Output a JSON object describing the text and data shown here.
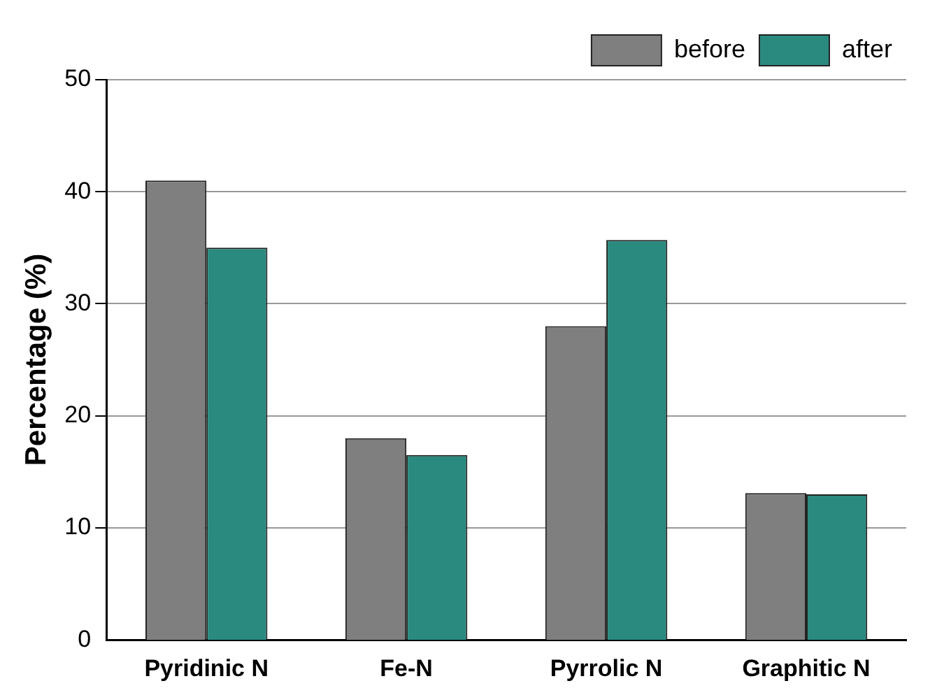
{
  "chart_data": {
    "type": "bar",
    "ylabel": "Percentage (%)",
    "categories": [
      "Pyridinic N",
      "Fe-N",
      "Pyrrolic N",
      "Graphitic N"
    ],
    "series": [
      {
        "name": "before",
        "color": "#7f7f7f",
        "values": [
          41,
          18,
          28,
          13.1
        ]
      },
      {
        "name": "after",
        "color": "#2a8a80",
        "values": [
          35,
          16.5,
          35.7,
          13
        ]
      }
    ],
    "ylim": [
      0,
      50
    ],
    "yticks": [
      0,
      10,
      20,
      30,
      40,
      50
    ],
    "grid": "y",
    "legend": "top right"
  }
}
